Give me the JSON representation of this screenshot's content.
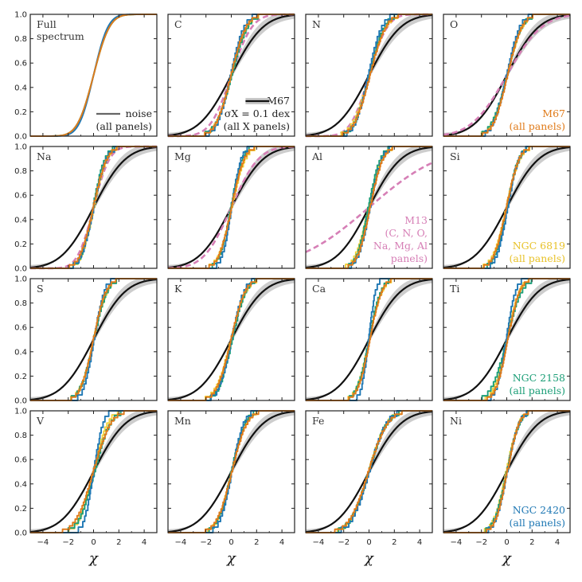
{
  "chart_data": {
    "type": "line",
    "subtype": "cumulative distribution grid",
    "xlabel": "χ",
    "xlim": [
      -5,
      5
    ],
    "ylim": [
      0,
      1
    ],
    "xticks": [
      "−4",
      "−2",
      "0",
      "2",
      "4"
    ],
    "yticks": [
      "0.0",
      "0.2",
      "0.4",
      "0.6",
      "0.8",
      "1.0"
    ],
    "series_styles": {
      "noise": {
        "color": "#666666",
        "label": "noise"
      },
      "M67_band": {
        "color": "#c8c8c8"
      },
      "M67": {
        "color": "#111111",
        "sigma": 2.0
      },
      "M13": {
        "color": "#d67fb6",
        "dashed": true
      },
      "M67_model": {
        "color": "#e07b1a"
      },
      "NGC6819": {
        "color": "#f2d23c"
      },
      "NGC2158": {
        "color": "#1b9e77"
      },
      "NGC2420": {
        "color": "#1f78b4"
      }
    },
    "panels": [
      {
        "label": "Full spectrum",
        "widths": {
          "noise": 1.0,
          "M67_model": 1.0,
          "NGC6819": 1.0,
          "NGC2158": 1.0,
          "NGC2420": 0.9
        },
        "m13": null,
        "m67": false
      },
      {
        "label": "C",
        "widths": {
          "M67_model": 0.95,
          "NGC6819": 1.0,
          "NGC2158": 1.0,
          "NGC2420": 0.85
        },
        "m13": 1.3,
        "m67": true
      },
      {
        "label": "N",
        "widths": {
          "M67_model": 1.0,
          "NGC6819": 1.05,
          "NGC2158": 0.95,
          "NGC2420": 0.85
        },
        "m13": 1.15,
        "m67": true
      },
      {
        "label": "O",
        "widths": {
          "M67_model": 0.9,
          "NGC6819": 0.95,
          "NGC2158": 0.95,
          "NGC2420": 0.85
        },
        "m13": 2.2,
        "m67": true
      },
      {
        "label": "Na",
        "widths": {
          "M67_model": 0.85,
          "NGC6819": 0.8,
          "NGC2158": 0.75,
          "NGC2420": 0.8
        },
        "m13": 1.0,
        "m67": true
      },
      {
        "label": "Mg",
        "widths": {
          "M67_model": 0.8,
          "NGC6819": 0.85,
          "NGC2158": 0.7,
          "NGC2420": 0.6
        },
        "m13": 1.7,
        "m67": true
      },
      {
        "label": "Al",
        "widths": {
          "M67_model": 0.8,
          "NGC6819": 0.85,
          "NGC2158": 0.75,
          "NGC2420": 0.75
        },
        "m13": 4.5,
        "m67": true
      },
      {
        "label": "Si",
        "widths": {
          "M67_model": 0.8,
          "NGC6819": 0.85,
          "NGC2158": 0.75,
          "NGC2420": 0.7
        },
        "m13": null,
        "m67": true
      },
      {
        "label": "S",
        "widths": {
          "M67_model": 0.8,
          "NGC6819": 0.85,
          "NGC2158": 0.85,
          "NGC2420": 0.65
        },
        "m13": null,
        "m67": true
      },
      {
        "label": "K",
        "widths": {
          "M67_model": 0.9,
          "NGC6819": 0.95,
          "NGC2158": 0.85,
          "NGC2420": 0.8
        },
        "m13": null,
        "m67": true
      },
      {
        "label": "Ca",
        "widths": {
          "M67_model": 0.75,
          "NGC6819": 0.8,
          "NGC2158": 0.75,
          "NGC2420": 0.45
        },
        "m13": null,
        "m67": true
      },
      {
        "label": "Ti",
        "widths": {
          "M67_model": 0.75,
          "NGC6819": 0.8,
          "NGC2158": 0.95,
          "NGC2420": 0.6
        },
        "m13": null,
        "m67": true
      },
      {
        "label": "V",
        "widths": {
          "M67_model": 1.1,
          "NGC6819": 0.9,
          "NGC2158": 1.0,
          "NGC2420": 0.6
        },
        "m13": null,
        "m67": true
      },
      {
        "label": "Mn",
        "widths": {
          "M67_model": 0.95,
          "NGC6819": 0.9,
          "NGC2158": 0.85,
          "NGC2420": 0.75
        },
        "m13": null,
        "m67": true
      },
      {
        "label": "Fe",
        "widths": {
          "M67_model": 1.2,
          "NGC6819": 1.15,
          "NGC2158": 1.15,
          "NGC2420": 1.1
        },
        "m13": null,
        "m67": true
      },
      {
        "label": "Ni",
        "widths": {
          "M67_model": 0.75,
          "NGC6819": 0.8,
          "NGC2158": 0.8,
          "NGC2420": 0.75
        },
        "m13": null,
        "m67": true
      }
    ],
    "annotations": [
      {
        "panel": 0,
        "lines": [
          "noise",
          "(all panels)"
        ],
        "color": "#222222",
        "swatch": "noise"
      },
      {
        "panel": 1,
        "lines": [
          "M67",
          "σX = 0.1 dex",
          "(all X panels)"
        ],
        "color": "#222222",
        "swatch": "M67"
      },
      {
        "panel": 3,
        "lines": [
          "M67",
          "(all panels)"
        ],
        "color": "#e07b1a"
      },
      {
        "panel": 6,
        "lines": [
          "M13",
          "(C, N, O,",
          "Na, Mg, Al",
          "panels)"
        ],
        "color": "#d67fb6"
      },
      {
        "panel": 7,
        "lines": [
          "NGC 6819",
          "(all panels)"
        ],
        "color": "#e8c22a"
      },
      {
        "panel": 11,
        "lines": [
          "NGC 2158",
          "(all panels)"
        ],
        "color": "#1b9e77"
      },
      {
        "panel": 15,
        "lines": [
          "NGC 2420",
          "(all panels)"
        ],
        "color": "#1f78b4"
      }
    ]
  }
}
